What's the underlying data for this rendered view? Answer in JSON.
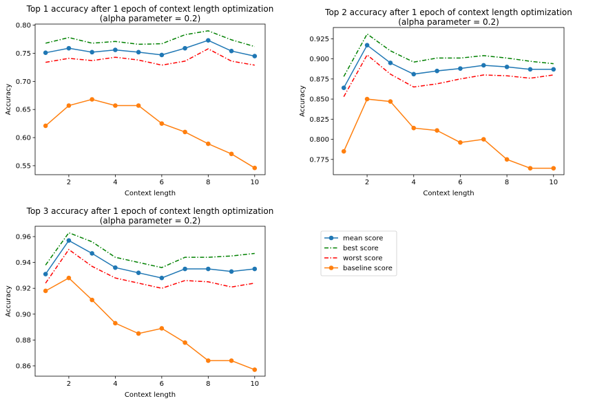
{
  "legend": [
    {
      "name": "mean score",
      "color": "#1f77b4",
      "style": "solid-marker"
    },
    {
      "name": "best score",
      "color": "#008000",
      "style": "dashdot"
    },
    {
      "name": "worst score",
      "color": "#ff0000",
      "style": "dashdot"
    },
    {
      "name": "baseline score",
      "color": "#ff7f0e",
      "style": "solid-marker"
    }
  ],
  "chart_data": [
    {
      "type": "line",
      "title": [
        "Top 1 accuracy after 1 epoch of context length optimization",
        "(alpha parameter = 0.2)"
      ],
      "xlabel": "Context length",
      "ylabel": "Accuracy",
      "x": [
        1,
        2,
        3,
        4,
        5,
        6,
        7,
        8,
        9,
        10
      ],
      "xlim": [
        0.55,
        10.45
      ],
      "ylim": [
        0.534,
        0.802
      ],
      "xticks": [
        2,
        4,
        6,
        8,
        10
      ],
      "yticks": [
        0.55,
        0.6,
        0.65,
        0.7,
        0.75,
        0.8
      ],
      "ytick_labels": [
        "0.55",
        "0.60",
        "0.65",
        "0.70",
        "0.75",
        "0.80"
      ],
      "series": [
        {
          "name": "mean score",
          "values": [
            0.751,
            0.759,
            0.752,
            0.756,
            0.752,
            0.747,
            0.759,
            0.773,
            0.754,
            0.745
          ]
        },
        {
          "name": "best score",
          "values": [
            0.768,
            0.778,
            0.768,
            0.771,
            0.766,
            0.767,
            0.783,
            0.79,
            0.774,
            0.762
          ]
        },
        {
          "name": "worst score",
          "values": [
            0.734,
            0.741,
            0.737,
            0.743,
            0.738,
            0.729,
            0.736,
            0.758,
            0.736,
            0.729
          ]
        },
        {
          "name": "baseline score",
          "values": [
            0.621,
            0.657,
            0.668,
            0.657,
            0.657,
            0.625,
            0.61,
            0.589,
            0.571,
            0.546
          ]
        }
      ]
    },
    {
      "type": "line",
      "title": [
        "Top 2 accuracy after 1 epoch of context length optimization",
        "(alpha parameter = 0.2)"
      ],
      "xlabel": "Context length",
      "ylabel": "Accuracy",
      "x": [
        1,
        2,
        3,
        4,
        5,
        6,
        7,
        8,
        9,
        10
      ],
      "xlim": [
        0.55,
        10.45
      ],
      "ylim": [
        0.756,
        0.939
      ],
      "xticks": [
        2,
        4,
        6,
        8,
        10
      ],
      "yticks": [
        0.775,
        0.8,
        0.825,
        0.85,
        0.875,
        0.9,
        0.925
      ],
      "ytick_labels": [
        "0.775",
        "0.800",
        "0.825",
        "0.850",
        "0.875",
        "0.900",
        "0.925"
      ],
      "series": [
        {
          "name": "mean score",
          "values": [
            0.864,
            0.917,
            0.895,
            0.881,
            0.885,
            0.888,
            0.892,
            0.89,
            0.887,
            0.887
          ]
        },
        {
          "name": "best score",
          "values": [
            0.878,
            0.931,
            0.91,
            0.896,
            0.901,
            0.901,
            0.904,
            0.901,
            0.897,
            0.894
          ]
        },
        {
          "name": "worst score",
          "values": [
            0.853,
            0.905,
            0.881,
            0.865,
            0.869,
            0.875,
            0.88,
            0.879,
            0.876,
            0.88
          ]
        },
        {
          "name": "baseline score",
          "values": [
            0.785,
            0.85,
            0.847,
            0.814,
            0.811,
            0.796,
            0.8,
            0.775,
            0.764,
            0.764
          ]
        }
      ]
    },
    {
      "type": "line",
      "title": [
        "Top 3 accuracy after 1 epoch of context length optimization",
        "(alpha parameter = 0.2)"
      ],
      "xlabel": "Context length",
      "ylabel": "Accuracy",
      "x": [
        1,
        2,
        3,
        4,
        5,
        6,
        7,
        8,
        9,
        10
      ],
      "xlim": [
        0.55,
        10.45
      ],
      "ylim": [
        0.852,
        0.968
      ],
      "xticks": [
        2,
        4,
        6,
        8,
        10
      ],
      "yticks": [
        0.86,
        0.88,
        0.9,
        0.92,
        0.94,
        0.96
      ],
      "ytick_labels": [
        "0.86",
        "0.88",
        "0.90",
        "0.92",
        "0.94",
        "0.96"
      ],
      "series": [
        {
          "name": "mean score",
          "values": [
            0.931,
            0.957,
            0.947,
            0.936,
            0.932,
            0.928,
            0.935,
            0.935,
            0.933,
            0.935
          ]
        },
        {
          "name": "best score",
          "values": [
            0.938,
            0.963,
            0.956,
            0.944,
            0.94,
            0.936,
            0.944,
            0.944,
            0.945,
            0.947
          ]
        },
        {
          "name": "worst score",
          "values": [
            0.924,
            0.95,
            0.937,
            0.928,
            0.924,
            0.92,
            0.926,
            0.925,
            0.921,
            0.924
          ]
        },
        {
          "name": "baseline score",
          "values": [
            0.918,
            0.928,
            0.911,
            0.893,
            0.885,
            0.889,
            0.878,
            0.864,
            0.864,
            0.857
          ]
        }
      ]
    }
  ]
}
